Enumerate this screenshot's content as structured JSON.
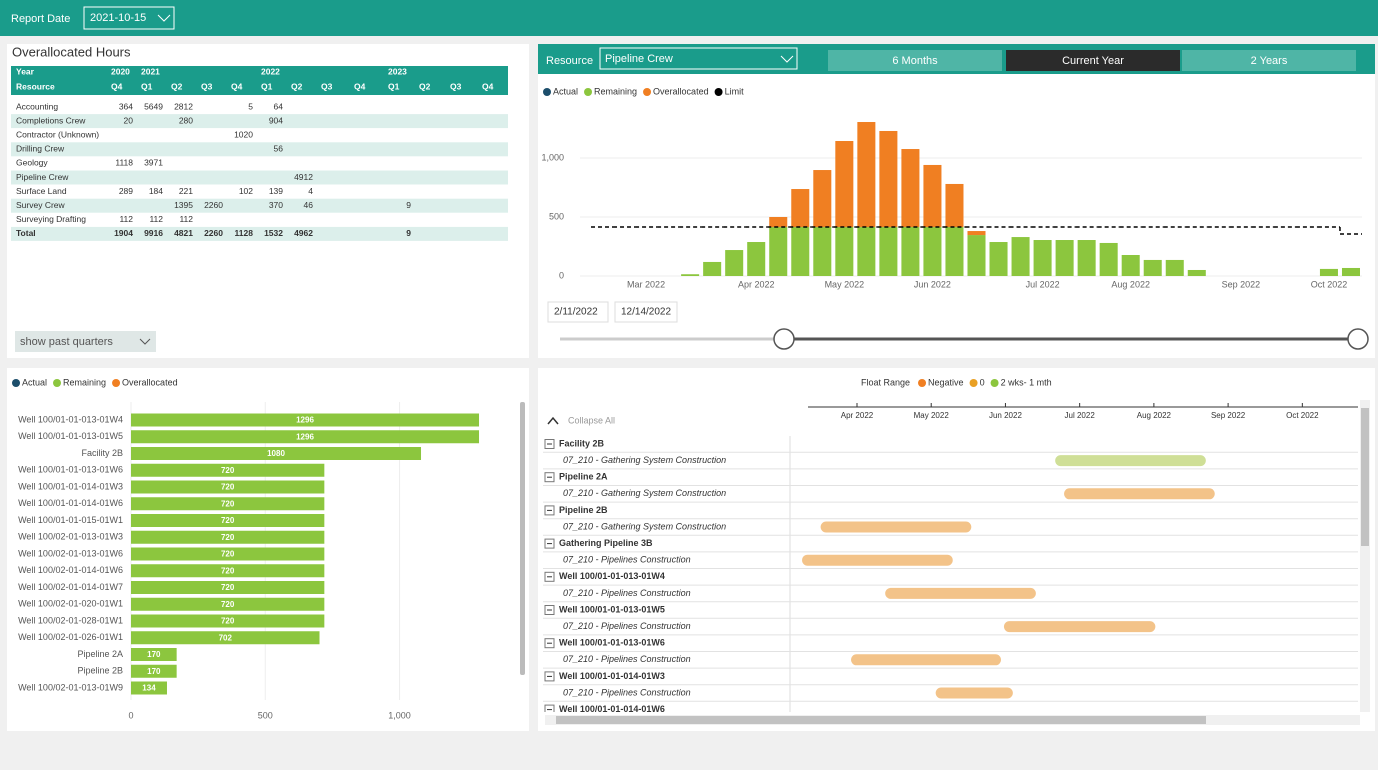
{
  "header": {
    "label": "Report Date",
    "date": "2021-10-15"
  },
  "table": {
    "title": "Overallocated Hours",
    "years": [
      "Year",
      "2020",
      "2021",
      null,
      null,
      null,
      "2022",
      null,
      null,
      null,
      "2023",
      null,
      null,
      null
    ],
    "quarters": [
      "Resource",
      "Q4",
      "Q1",
      "Q2",
      "Q3",
      "Q4",
      "Q1",
      "Q2",
      "Q3",
      "Q4",
      "Q1",
      "Q2",
      "Q3",
      "Q4"
    ],
    "rows": [
      [
        "Accounting",
        364,
        5649,
        2812,
        null,
        5,
        64,
        null,
        null,
        null,
        null,
        null,
        null,
        null
      ],
      [
        "Completions Crew",
        20,
        null,
        280,
        null,
        null,
        904,
        null,
        null,
        null,
        null,
        null,
        null,
        null
      ],
      [
        "Contractor (Unknown)",
        null,
        null,
        null,
        null,
        1020,
        null,
        null,
        null,
        null,
        null,
        null,
        null,
        null
      ],
      [
        "Drilling Crew",
        null,
        null,
        null,
        null,
        null,
        56,
        null,
        null,
        null,
        null,
        null,
        null,
        null
      ],
      [
        "Geology",
        1118,
        3971,
        null,
        null,
        null,
        null,
        null,
        null,
        null,
        null,
        null,
        null,
        null
      ],
      [
        "Pipeline Crew",
        null,
        null,
        null,
        null,
        null,
        null,
        4912,
        null,
        null,
        null,
        null,
        null,
        null
      ],
      [
        "Surface Land",
        289,
        184,
        221,
        null,
        102,
        139,
        4,
        null,
        null,
        null,
        null,
        null,
        null
      ],
      [
        "Survey Crew",
        null,
        null,
        1395,
        2260,
        null,
        370,
        46,
        null,
        null,
        9,
        null,
        null,
        null
      ],
      [
        "Surveying Drafting",
        112,
        112,
        112,
        null,
        null,
        null,
        null,
        null,
        null,
        null,
        null,
        null,
        null
      ],
      [
        "Total",
        1904,
        9916,
        4821,
        2260,
        1128,
        1532,
        4962,
        null,
        null,
        9,
        null,
        null,
        null
      ]
    ],
    "button": "show past quarters"
  },
  "chart_data": [
    {
      "type": "bar",
      "stacked": true,
      "resource_label": "Resource",
      "resource": "Pipeline Crew",
      "periods": [
        "6 Months",
        "Current Year",
        "2 Years"
      ],
      "active_period": 1,
      "categories": [
        null,
        null,
        "Mar 2022",
        null,
        null,
        null,
        null,
        "Apr 2022",
        null,
        null,
        null,
        "May 2022",
        null,
        null,
        null,
        "Jun 2022",
        null,
        null,
        null,
        null,
        "Jul 2022",
        null,
        null,
        null,
        "Aug 2022",
        null,
        null,
        null,
        null,
        "Sep 2022",
        null,
        null,
        null,
        "Oct 2022",
        null
      ],
      "series": [
        {
          "name": "Actual",
          "color": "#1c4e6b",
          "values": [
            null,
            null,
            null,
            null,
            null,
            null,
            null,
            null,
            null,
            null,
            null,
            null,
            null,
            null,
            null,
            null,
            null,
            null,
            null,
            null,
            null,
            null,
            null,
            null,
            null,
            null,
            null,
            null,
            null,
            null,
            null,
            null,
            null,
            null,
            null
          ]
        },
        {
          "name": "Remaining",
          "color": "#8cc63e",
          "values": [
            null,
            null,
            null,
            null,
            15,
            119,
            220,
            288,
            415,
            415,
            415,
            415,
            415,
            415,
            415,
            415,
            415,
            347,
            288,
            330,
            305,
            305,
            305,
            280,
            178,
            136,
            136,
            51,
            null,
            null,
            null,
            null,
            null,
            60,
            68
          ]
        },
        {
          "name": "Overallocated",
          "color": "#f07f22",
          "values": [
            null,
            null,
            null,
            null,
            null,
            null,
            null,
            null,
            85,
            322,
            483,
            729,
            890,
            814,
            661,
            526,
            365,
            34,
            null,
            null,
            null,
            null,
            null,
            null,
            null,
            null,
            null,
            null,
            null,
            null,
            null,
            null,
            null,
            null,
            null
          ]
        },
        {
          "name": "Limit",
          "color": "#000000",
          "type": "line",
          "dashed": true,
          "values": [
            415,
            415,
            415,
            415,
            415,
            415,
            415,
            415,
            415,
            415,
            415,
            415,
            415,
            415,
            415,
            415,
            415,
            415,
            415,
            415,
            415,
            415,
            415,
            415,
            415,
            415,
            415,
            415,
            415,
            415,
            415,
            415,
            415,
            415,
            356
          ]
        }
      ],
      "ylim": [
        0,
        1500
      ],
      "yticks": [
        0,
        500,
        {
          "value": 1000,
          "label": "1,000"
        }
      ],
      "grid": true,
      "range_start": "2/11/2022",
      "range_end": "12/14/2022"
    },
    {
      "type": "barh",
      "categories": [
        "Well 100/01-01-013-01W4",
        "Well 100/01-01-013-01W5",
        "Facility 2B",
        "Well 100/01-01-013-01W6",
        "Well 100/01-01-014-01W3",
        "Well 100/01-01-014-01W6",
        "Well 100/01-01-015-01W1",
        "Well 100/02-01-013-01W3",
        "Well 100/02-01-013-01W6",
        "Well 100/02-01-014-01W6",
        "Well 100/02-01-014-01W7",
        "Well 100/02-01-020-01W1",
        "Well 100/02-01-028-01W1",
        "Well 100/02-01-026-01W1",
        "Pipeline 2A",
        "Pipeline 2B",
        "Well 100/02-01-013-01W9"
      ],
      "series": [
        {
          "name": "Actual",
          "color": "#1c4e6b",
          "values": [
            null,
            null,
            null,
            null,
            null,
            null,
            null,
            null,
            null,
            null,
            null,
            null,
            null,
            null,
            null,
            null,
            null
          ]
        },
        {
          "name": "Remaining",
          "color": "#8cc63e",
          "values": [
            1296,
            1296,
            1080,
            720,
            720,
            720,
            720,
            720,
            720,
            720,
            720,
            720,
            720,
            702,
            170,
            170,
            134
          ]
        },
        {
          "name": "Overallocated",
          "color": "#f07f22",
          "values": [
            null,
            null,
            null,
            null,
            null,
            null,
            null,
            null,
            null,
            null,
            null,
            null,
            null,
            null,
            null,
            null,
            null
          ]
        }
      ],
      "xlim": [
        0,
        1430
      ],
      "xticks": [
        0,
        500,
        {
          "value": 1000,
          "label": "1,000"
        }
      ],
      "grid": true
    }
  ],
  "gantt": {
    "legend_title": "Float Range",
    "legend": [
      {
        "name": "Negative",
        "color": "#f07f22"
      },
      {
        "name": "0",
        "color": "#e9a024"
      },
      {
        "name": "2 wks- 1 mth",
        "color": "#8cc63e"
      }
    ],
    "collapse": "Collapse All",
    "xlim": [
      3.34,
      10.75
    ],
    "xticks": [
      {
        "value": 4,
        "label": "Apr 2022"
      },
      {
        "value": 5,
        "label": "May 2022"
      },
      {
        "value": 6,
        "label": "Jun 2022"
      },
      {
        "value": 7,
        "label": "Jul 2022"
      },
      {
        "value": 8,
        "label": "Aug 2022"
      },
      {
        "value": 9,
        "label": "Sep 2022"
      },
      {
        "value": 10,
        "label": "Oct 2022"
      }
    ],
    "groups": [
      {
        "name": "Facility 2B",
        "tasks": [
          {
            "name": "07_210 - Gathering System Construction",
            "start": 6.67,
            "end": 8.7,
            "color": "#cfdf97"
          }
        ]
      },
      {
        "name": "Pipeline 2A",
        "tasks": [
          {
            "name": "07_210 - Gathering System Construction",
            "start": 6.79,
            "end": 8.82,
            "color": "#f3c389"
          }
        ]
      },
      {
        "name": "Pipeline 2B",
        "tasks": [
          {
            "name": "07_210 - Gathering System Construction",
            "start": 3.51,
            "end": 5.54,
            "color": "#f3c389"
          }
        ]
      },
      {
        "name": "Gathering Pipeline 3B",
        "tasks": [
          {
            "name": "07_210 - Pipelines Construction",
            "start": 3.26,
            "end": 5.29,
            "color": "#f3c389"
          }
        ]
      },
      {
        "name": "Well 100/01-01-013-01W4",
        "tasks": [
          {
            "name": "07_210 - Pipelines Construction",
            "start": 4.38,
            "end": 6.41,
            "color": "#f3c389"
          }
        ]
      },
      {
        "name": "Well 100/01-01-013-01W5",
        "tasks": [
          {
            "name": "07_210 - Pipelines Construction",
            "start": 5.98,
            "end": 8.02,
            "color": "#f3c389"
          }
        ]
      },
      {
        "name": "Well 100/01-01-013-01W6",
        "tasks": [
          {
            "name": "07_210 - Pipelines Construction",
            "start": 3.92,
            "end": 5.94,
            "color": "#f3c389"
          }
        ]
      },
      {
        "name": "Well 100/01-01-014-01W3",
        "tasks": [
          {
            "name": "07_210 - Pipelines Construction",
            "start": 5.06,
            "end": 6.1,
            "color": "#f3c389"
          }
        ]
      },
      {
        "name": "Well 100/01-01-014-01W6",
        "tasks": []
      }
    ]
  }
}
